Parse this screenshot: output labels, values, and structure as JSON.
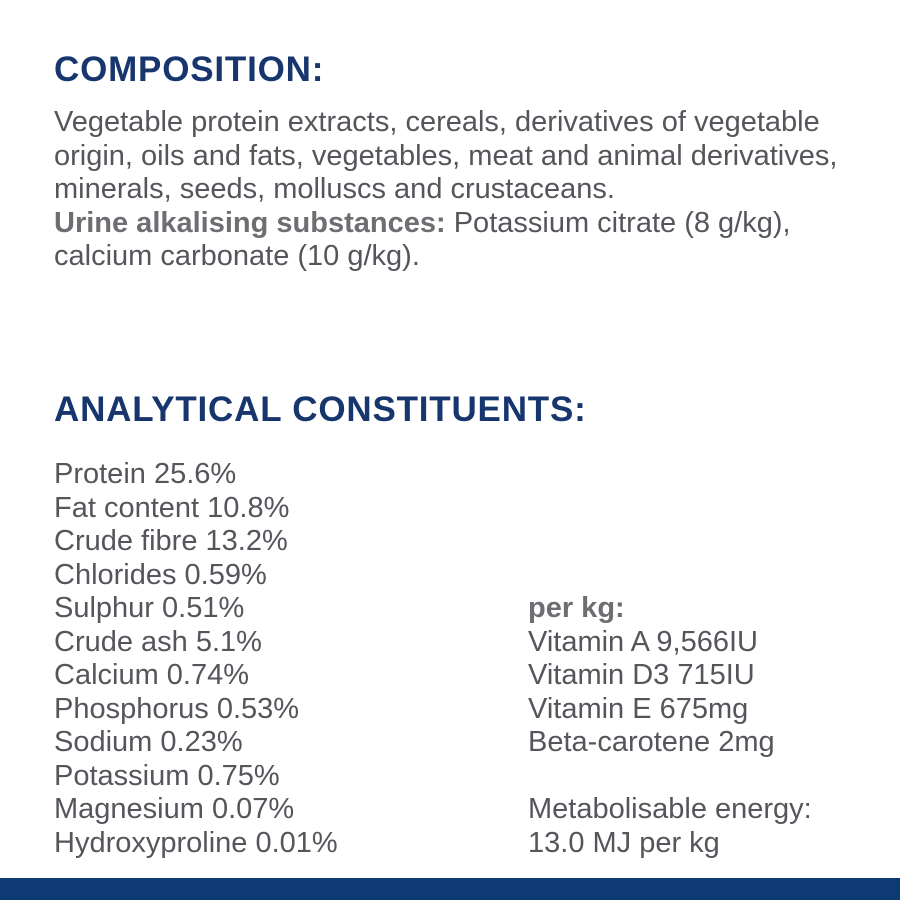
{
  "colors": {
    "heading_navy": "#17366d",
    "body_gray": "#55565b",
    "label_gray": "#6d6e71",
    "bottom_bar_navy": "#0e3a74",
    "background": "#ffffff"
  },
  "composition": {
    "heading": "COMPOSITION:",
    "ingredients": "Vegetable protein extracts, cereals, derivatives of vegetable origin, oils and fats, vegetables, meat and animal derivatives, minerals, seeds, molluscs and crustaceans.",
    "urine_label": "Urine alkalising substances:",
    "urine_value": "Potassium citrate (8 g/kg), calcium carbonate (10 g/kg)."
  },
  "analytical": {
    "heading": "ANALYTICAL CONSTITUENTS:",
    "constituents": [
      "Protein 25.6%",
      "Fat content 10.8%",
      "Crude fibre 13.2%",
      "Chlorides 0.59%",
      "Sulphur 0.51%",
      "Crude ash 5.1%",
      "Calcium 0.74%",
      "Phosphorus 0.53%",
      "Sodium 0.23%",
      "Potassium 0.75%",
      "Magnesium 0.07%",
      "Hydroxyproline 0.01%"
    ],
    "per_kg_label": "per kg:",
    "per_kg_items": [
      "Vitamin A 9,566IU",
      "Vitamin D3 715IU",
      "Vitamin E 675mg",
      "Beta-carotene 2mg"
    ],
    "energy_label": "Metabolisable energy:",
    "energy_value": "13.0 MJ per kg"
  }
}
